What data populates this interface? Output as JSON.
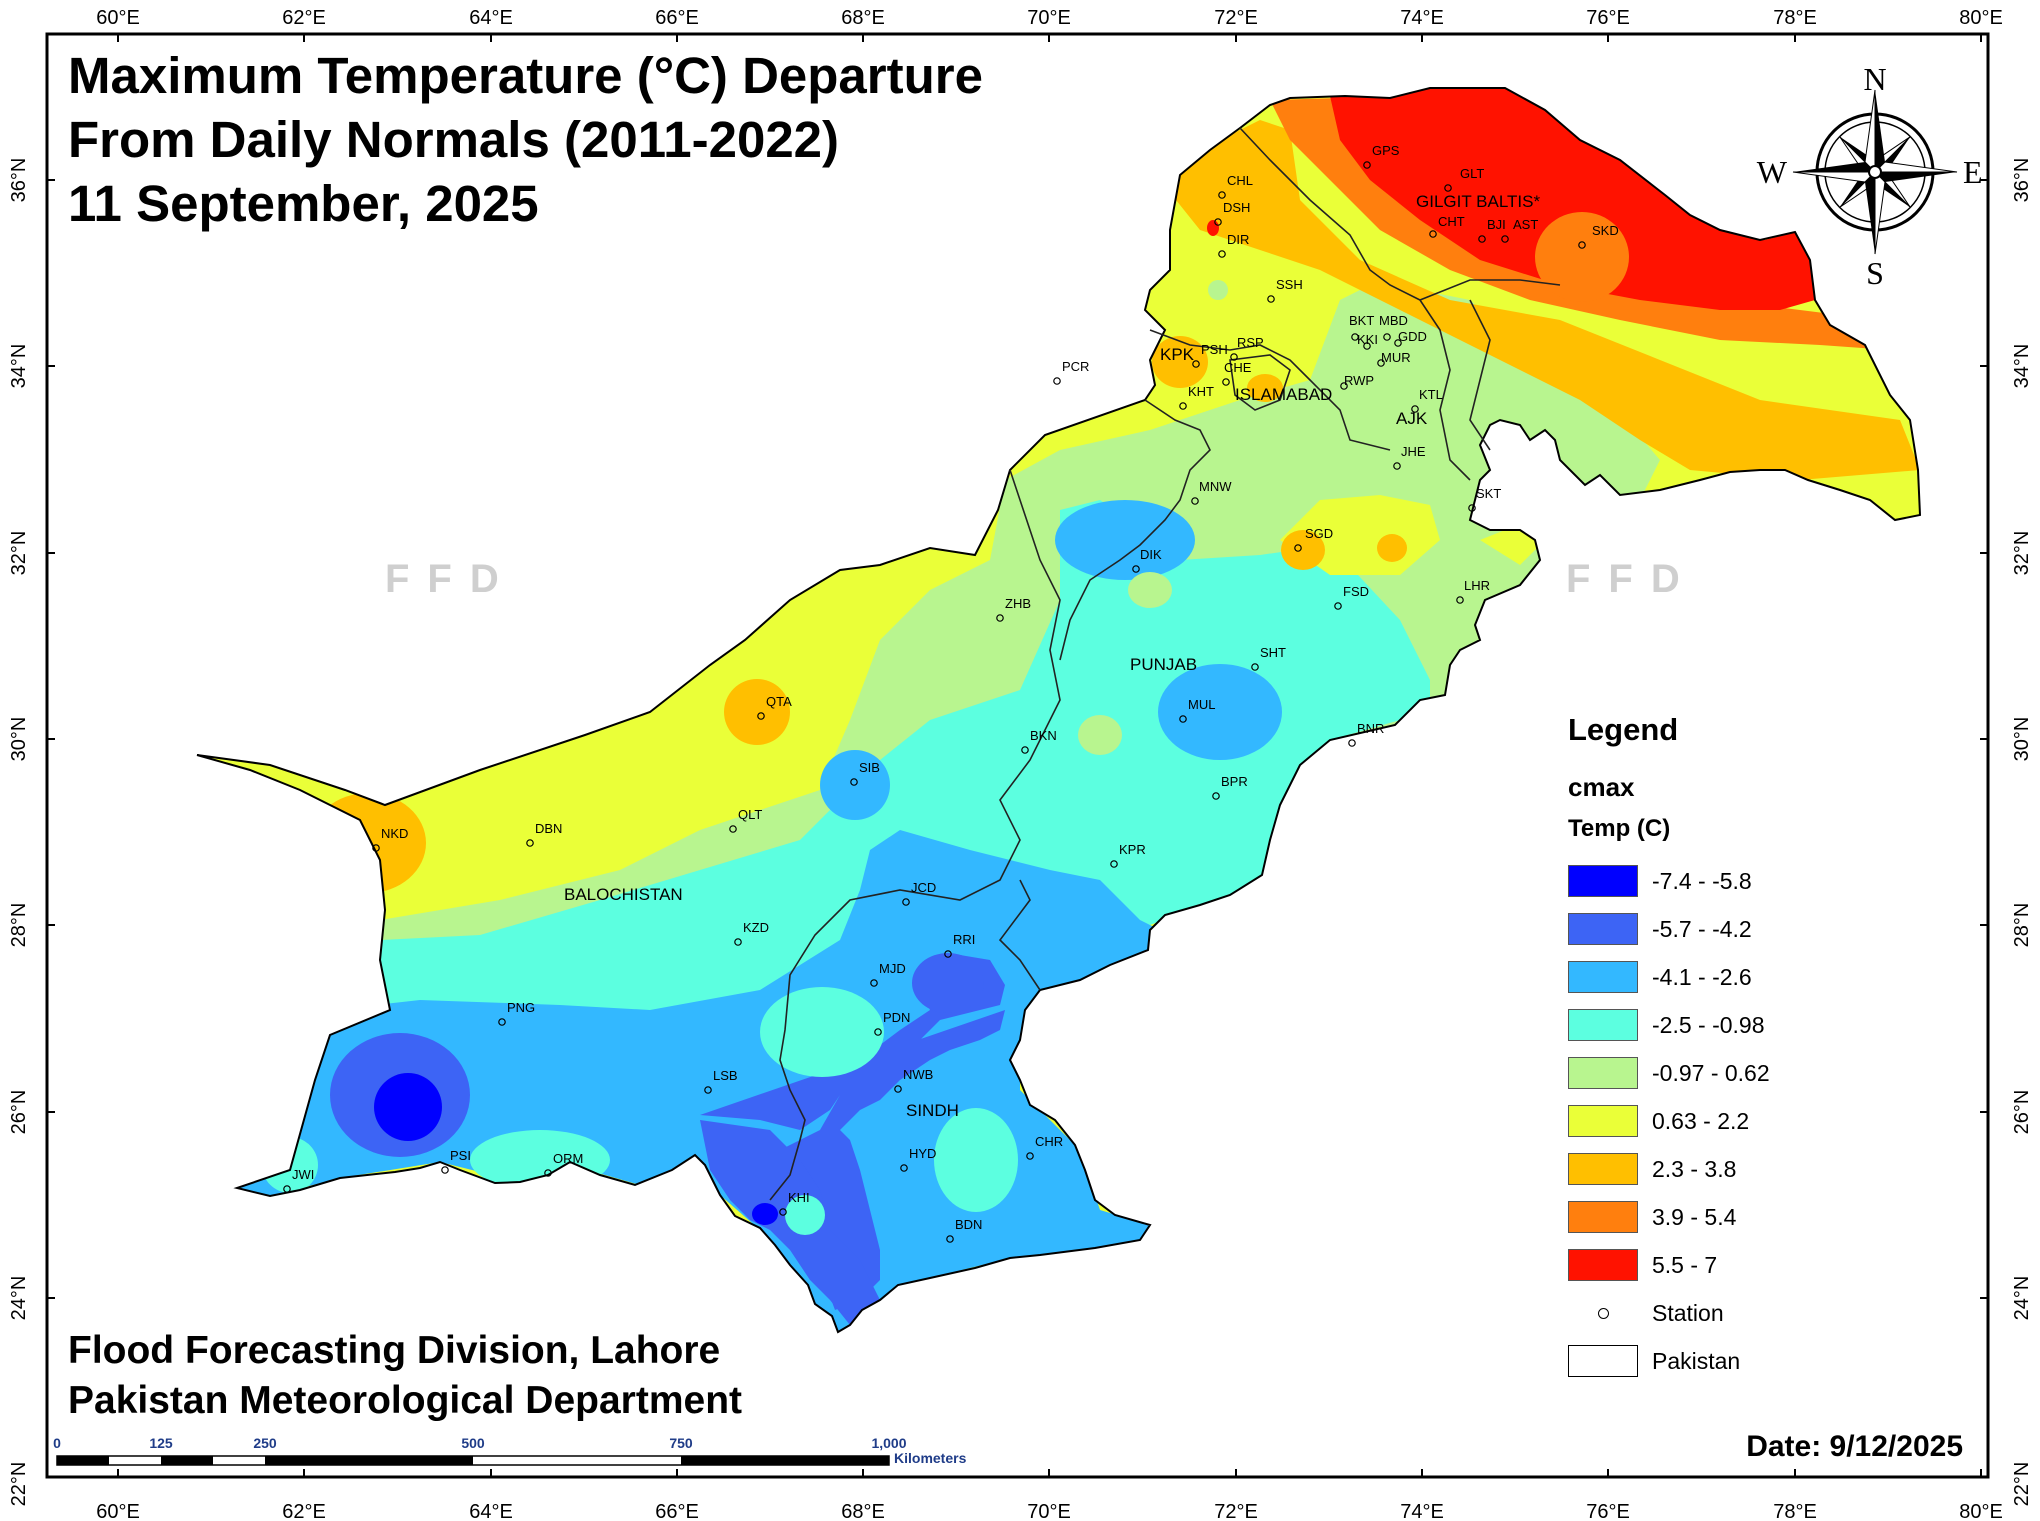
{
  "title": {
    "line1": "Maximum Temperature (°C) Departure",
    "line2": "From Daily Normals (2011-2022)",
    "line3": "11 September, 2025"
  },
  "credits": {
    "line1": "Flood Forecasting Division, Lahore",
    "line2": "Pakistan Meteorological Department"
  },
  "date_label": "Date: 9/12/2025",
  "watermark": "FFD",
  "compass": {
    "n": "N",
    "s": "S",
    "e": "E",
    "w": "W"
  },
  "axes": {
    "longitude_ticks": [
      "60°E",
      "62°E",
      "64°E",
      "66°E",
      "68°E",
      "70°E",
      "72°E",
      "74°E",
      "76°E",
      "78°E",
      "80°E"
    ],
    "latitude_ticks": [
      "36°N",
      "34°N",
      "32°N",
      "30°N",
      "28°N",
      "26°N",
      "24°N",
      "22°N"
    ]
  },
  "scale_bar": {
    "ticks": [
      "0",
      "125",
      "250",
      "500",
      "750",
      "1,000"
    ],
    "unit": "Kilometers"
  },
  "legend": {
    "title": "Legend",
    "field": "cmax",
    "subtitle": "Temp (C)",
    "classes": [
      {
        "label": "-7.4 - -5.8",
        "color": "#0000ff"
      },
      {
        "label": "-5.7 - -4.2",
        "color": "#3d64f5"
      },
      {
        "label": "-4.1 - -2.6",
        "color": "#33b8ff"
      },
      {
        "label": "-2.5 - -0.98",
        "color": "#5cffe0"
      },
      {
        "label": "-0.97 - 0.62",
        "color": "#b8f58f"
      },
      {
        "label": "0.63 - 2.2",
        "color": "#eaff38"
      },
      {
        "label": "2.3 - 3.8",
        "color": "#ffbf00"
      },
      {
        "label": "3.9 - 5.4",
        "color": "#ff7f0e"
      },
      {
        "label": "5.5 - 7",
        "color": "#ff1200"
      }
    ],
    "station_label": "Station",
    "boundary_label": "Pakistan"
  },
  "regions": {
    "gilgit": "GILGIT BALTIS*",
    "kpk": "KPK",
    "islamabad": "ISLAMABAD",
    "ajk": "AJK",
    "punjab": "PUNJAB",
    "balochistan": "BALOCHISTAN",
    "sindh": "SINDH"
  },
  "stations": {
    "GPS": "GPS",
    "GLT": "GLT",
    "CHT": "CHT",
    "BJI": "BJI",
    "AST": "AST",
    "SKD": "SKD",
    "CHL": "CHL",
    "DSH": "DSH",
    "DIR": "DIR",
    "SSH": "SSH",
    "BKT": "BKT",
    "MBD": "MBD",
    "KKI": "KKI",
    "GDD": "GDD",
    "MUR": "MUR",
    "RWP": "RWP",
    "KTL": "KTL",
    "JHE": "JHE",
    "PSH": "PSH",
    "RSP": "RSP",
    "CHE": "CHE",
    "KHT": "KHT",
    "PCR": "PCR",
    "MNW": "MNW",
    "SGD": "SGD",
    "DIK": "DIK",
    "SKT": "SKT",
    "LHR": "LHR",
    "FSD": "FSD",
    "ZHB": "ZHB",
    "SHT": "SHT",
    "MUL": "MUL",
    "BKN": "BKN",
    "BNR": "BNR",
    "QTA": "QTA",
    "SIB": "SIB",
    "BPR": "BPR",
    "NKD": "NKD",
    "DBN": "DBN",
    "QLT": "QLT",
    "KPR": "KPR",
    "JCD": "JCD",
    "KZD": "KZD",
    "RRI": "RRI",
    "MJD": "MJD",
    "PNG": "PNG",
    "PDN": "PDN",
    "LSB": "LSB",
    "NWB": "NWB",
    "CHR": "CHR",
    "PSI": "PSI",
    "HYD": "HYD",
    "JWI": "JWI",
    "ORM": "ORM",
    "KHI": "KHI",
    "BDN": "BDN"
  }
}
